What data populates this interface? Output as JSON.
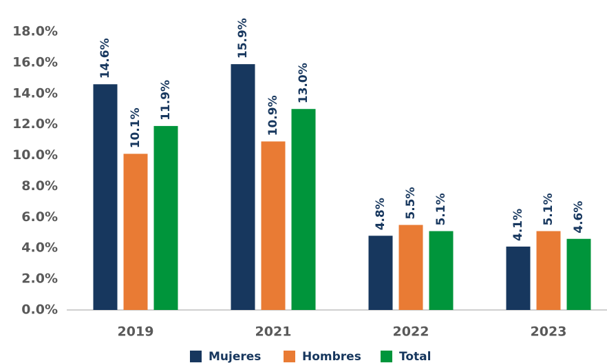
{
  "chart_data": {
    "type": "bar",
    "categories": [
      "2019",
      "2021",
      "2022",
      "2023"
    ],
    "series": [
      {
        "name": "Mujeres",
        "color": "#17375e",
        "values": [
          14.6,
          15.9,
          4.8,
          4.1
        ],
        "value_labels": [
          "14.6%",
          "15.9%",
          "4.8%",
          "4.1%"
        ]
      },
      {
        "name": "Hombres",
        "color": "#e97b34",
        "values": [
          10.1,
          10.9,
          5.5,
          5.1
        ],
        "value_labels": [
          "10.1%",
          "10.9%",
          "5.5%",
          "5.1%"
        ]
      },
      {
        "name": "Total",
        "color": "#00953b",
        "values": [
          11.9,
          13.0,
          5.1,
          4.6
        ],
        "value_labels": [
          "11.9%",
          "13.0%",
          "5.1%",
          "4.6%"
        ]
      }
    ],
    "ylim": [
      0,
      18
    ],
    "yticks": [
      {
        "value": 0,
        "label": "0.0%"
      },
      {
        "value": 2,
        "label": "2.0%"
      },
      {
        "value": 4,
        "label": "4.0%"
      },
      {
        "value": 6,
        "label": "6.0%"
      },
      {
        "value": 8,
        "label": "8.0%"
      },
      {
        "value": 10,
        "label": "10.0%"
      },
      {
        "value": 12,
        "label": "12.0%"
      },
      {
        "value": 14,
        "label": "14.0%"
      },
      {
        "value": 16,
        "label": "16.0%"
      },
      {
        "value": 18,
        "label": "18.0%"
      }
    ],
    "grid": false,
    "legend": "bottom"
  }
}
